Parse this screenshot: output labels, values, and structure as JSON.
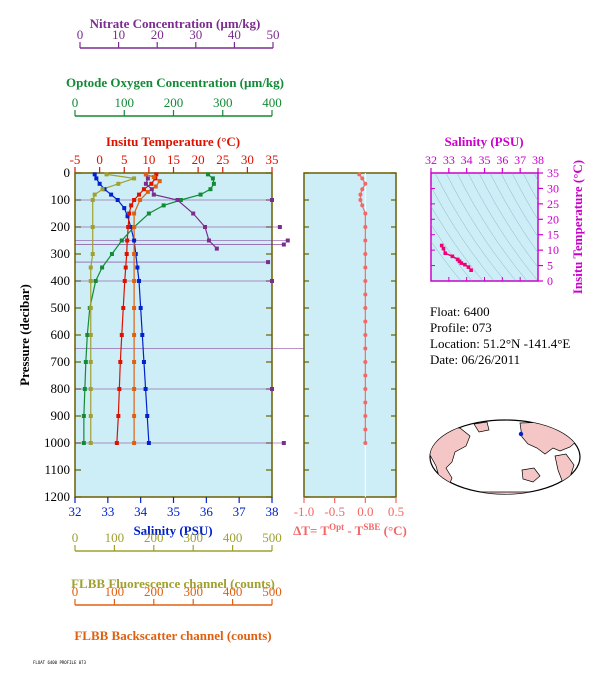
{
  "colors": {
    "nitrate": "#7b2d8e",
    "oxygen": "#138a36",
    "temperature": "#dd1100",
    "salinity": "#0022cc",
    "fluorescence": "#a0a030",
    "backscatter": "#e06010",
    "dt": "#f26868",
    "ts_axis": "#cc00cc",
    "ts_line": "#ee0077",
    "plot_bg": "#cdeef7",
    "frame": "#6b5e00",
    "land": "#f5c6c6"
  },
  "axes": {
    "nitrate": {
      "label": "Nitrate Concentration (µm/kg)",
      "ticks": [
        "0",
        "10",
        "20",
        "30",
        "40",
        "50"
      ]
    },
    "oxygen": {
      "label": "Optode Oxygen Concentration (µm/kg)",
      "ticks": [
        "0",
        "100",
        "200",
        "300",
        "400"
      ]
    },
    "temperature": {
      "label": "Insitu Temperature (°C)",
      "ticks": [
        "-5",
        "0",
        "5",
        "10",
        "15",
        "20",
        "25",
        "30",
        "35"
      ]
    },
    "pressure": {
      "label": "Pressure (decibar)",
      "ticks": [
        "0",
        "100",
        "200",
        "300",
        "400",
        "500",
        "600",
        "700",
        "800",
        "900",
        "1000",
        "1100",
        "1200"
      ]
    },
    "salinity": {
      "label": "Salinity (PSU)",
      "ticks": [
        "32",
        "33",
        "34",
        "35",
        "36",
        "37",
        "38"
      ]
    },
    "fluorescence": {
      "label": "FLBB Fluorescence channel (counts)",
      "ticks": [
        "0",
        "100",
        "200",
        "300",
        "400",
        "500"
      ]
    },
    "backscatter": {
      "label": "FLBB Backscatter channel (counts)",
      "ticks": [
        "0",
        "100",
        "200",
        "300",
        "400",
        "500"
      ]
    },
    "dt": {
      "label_main": "ΔT= T",
      "label_sup1": "Opt",
      "label_mid": " - T",
      "label_sup2": "SBE",
      "label_end": " (°C)",
      "ticks": [
        "-1.0",
        "-0.5",
        "0.0",
        "0.5"
      ]
    },
    "ts_salinity": {
      "label": "Salinity (PSU)",
      "ticks": [
        "32",
        "33",
        "34",
        "35",
        "36",
        "37",
        "38"
      ]
    },
    "ts_temperature": {
      "label": "Insitu Temperature (°C)",
      "ticks": [
        "0",
        "5",
        "10",
        "15",
        "20",
        "25",
        "30",
        "35"
      ]
    }
  },
  "info": {
    "float": "Float:  6400",
    "profile": "Profile:  073",
    "location": "Location:  51.2°N  -141.4°E",
    "date": "Date:  06/26/2011"
  },
  "footer": "FLOAT 6400 PROFILE 073",
  "chart_data": [
    {
      "type": "line",
      "name": "profile",
      "ylim": [
        0,
        1200
      ],
      "series": [
        {
          "name": "Salinity (PSU)",
          "xlim": [
            32,
            38
          ],
          "points": [
            [
              32.6,
              5
            ],
            [
              32.65,
              20
            ],
            [
              32.75,
              40
            ],
            [
              32.9,
              60
            ],
            [
              33.1,
              80
            ],
            [
              33.3,
              100
            ],
            [
              33.5,
              130
            ],
            [
              33.6,
              160
            ],
            [
              33.7,
              200
            ],
            [
              33.8,
              250
            ],
            [
              33.85,
              300
            ],
            [
              33.9,
              350
            ],
            [
              33.95,
              400
            ],
            [
              34.0,
              500
            ],
            [
              34.05,
              600
            ],
            [
              34.1,
              700
            ],
            [
              34.15,
              800
            ],
            [
              34.2,
              900
            ],
            [
              34.25,
              1000
            ]
          ]
        },
        {
          "name": "Insitu Temperature (°C)",
          "xlim": [
            -5,
            35
          ],
          "points": [
            [
              11.5,
              5
            ],
            [
              11.3,
              20
            ],
            [
              10.5,
              40
            ],
            [
              9.0,
              60
            ],
            [
              8.0,
              80
            ],
            [
              7.0,
              100
            ],
            [
              6.4,
              120
            ],
            [
              6.0,
              150
            ],
            [
              5.8,
              200
            ],
            [
              5.6,
              250
            ],
            [
              5.5,
              300
            ],
            [
              5.3,
              350
            ],
            [
              5.1,
              400
            ],
            [
              4.8,
              500
            ],
            [
              4.5,
              600
            ],
            [
              4.2,
              700
            ],
            [
              4.0,
              800
            ],
            [
              3.8,
              900
            ],
            [
              3.5,
              1000
            ]
          ]
        },
        {
          "name": "Optode Oxygen Concentration (µm/kg)",
          "xlim": [
            0,
            400
          ],
          "points": [
            [
              270,
              5
            ],
            [
              280,
              20
            ],
            [
              282,
              40
            ],
            [
              275,
              60
            ],
            [
              255,
              80
            ],
            [
              215,
              100
            ],
            [
              180,
              120
            ],
            [
              150,
              150
            ],
            [
              120,
              200
            ],
            [
              95,
              250
            ],
            [
              75,
              300
            ],
            [
              55,
              350
            ],
            [
              42,
              400
            ],
            [
              30,
              500
            ],
            [
              25,
              600
            ],
            [
              22,
              700
            ],
            [
              20,
              800
            ],
            [
              18,
              900
            ],
            [
              18,
              1000
            ]
          ]
        },
        {
          "name": "Nitrate Concentration (µm/kg)",
          "xlim": [
            0,
            50
          ],
          "points": [
            [
              18,
              5
            ],
            [
              18.5,
              20
            ],
            [
              18,
              40
            ],
            [
              19.5,
              60
            ],
            [
              20,
              80
            ],
            [
              26,
              100
            ],
            [
              30,
              150
            ],
            [
              33,
              200
            ],
            [
              34,
              250
            ],
            [
              36,
              280
            ]
          ]
        },
        {
          "name": "FLBB Fluorescence channel (counts)",
          "xlim": [
            0,
            500
          ],
          "points": [
            [
              80,
              5
            ],
            [
              150,
              20
            ],
            [
              110,
              40
            ],
            [
              70,
              60
            ],
            [
              50,
              80
            ],
            [
              45,
              100
            ],
            [
              45,
              200
            ],
            [
              45,
              300
            ],
            [
              40,
              350
            ],
            [
              40,
              400
            ],
            [
              40,
              500
            ],
            [
              40,
              600
            ],
            [
              40,
              700
            ],
            [
              40,
              800
            ],
            [
              40,
              900
            ],
            [
              40,
              1000
            ]
          ]
        },
        {
          "name": "FLBB Backscatter channel (counts)",
          "xlim": [
            0,
            500
          ],
          "points": [
            [
              180,
              5
            ],
            [
              200,
              15
            ],
            [
              215,
              30
            ],
            [
              205,
              50
            ],
            [
              185,
              70
            ],
            [
              165,
              100
            ],
            [
              150,
              150
            ],
            [
              150,
              200
            ],
            [
              150,
              300
            ],
            [
              150,
              400
            ],
            [
              150,
              500
            ],
            [
              150,
              600
            ],
            [
              150,
              700
            ],
            [
              150,
              800
            ],
            [
              150,
              900
            ],
            [
              150,
              1000
            ]
          ]
        }
      ],
      "spikes": [
        [
          100,
          50
        ],
        [
          200,
          52
        ],
        [
          250,
          54
        ],
        [
          265,
          53
        ],
        [
          330,
          49
        ],
        [
          400,
          50
        ],
        [
          650,
          60
        ],
        [
          800,
          50
        ],
        [
          1000,
          53
        ]
      ]
    },
    {
      "type": "line",
      "name": "delta_t",
      "xlim": [
        -1.0,
        0.5
      ],
      "ylim": [
        0,
        1200
      ],
      "points": [
        [
          -0.1,
          5
        ],
        [
          -0.05,
          20
        ],
        [
          0.0,
          40
        ],
        [
          -0.05,
          60
        ],
        [
          -0.08,
          80
        ],
        [
          -0.08,
          100
        ],
        [
          -0.05,
          120
        ],
        [
          0.0,
          150
        ],
        [
          0.0,
          200
        ],
        [
          0.0,
          250
        ],
        [
          0.0,
          300
        ],
        [
          0.0,
          350
        ],
        [
          0.0,
          400
        ],
        [
          0.0,
          450
        ],
        [
          0.0,
          500
        ],
        [
          0.0,
          550
        ],
        [
          0.0,
          600
        ],
        [
          0.0,
          650
        ],
        [
          0.0,
          700
        ],
        [
          0.0,
          750
        ],
        [
          0.0,
          800
        ],
        [
          0.0,
          850
        ],
        [
          0.0,
          900
        ],
        [
          0.0,
          950
        ],
        [
          0.0,
          1000
        ]
      ]
    },
    {
      "type": "line",
      "name": "ts_diagram",
      "xlim": [
        32,
        38
      ],
      "ylim": [
        0,
        35
      ],
      "points": [
        [
          32.6,
          11.5
        ],
        [
          32.7,
          10.5
        ],
        [
          32.8,
          9.0
        ],
        [
          33.2,
          8.0
        ],
        [
          33.5,
          7.0
        ],
        [
          33.6,
          6.4
        ],
        [
          33.7,
          5.8
        ],
        [
          33.9,
          5.3
        ],
        [
          34.1,
          4.5
        ],
        [
          34.25,
          3.5
        ]
      ]
    }
  ]
}
